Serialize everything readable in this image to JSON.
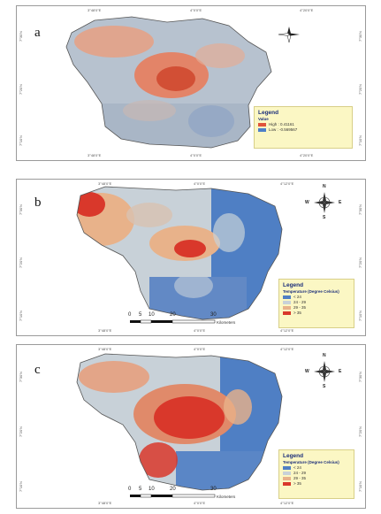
{
  "panels": [
    {
      "letter": "a",
      "legend": {
        "title": "Legend",
        "subtitle": "Value",
        "items": [
          {
            "label": "High : 0.41161",
            "color": "#e0533a"
          },
          {
            "label": "Low : -0.569567",
            "color": "#4d7fc8"
          }
        ]
      },
      "coords_top": [
        "3°48'0\"E",
        "4°0'0\"E",
        "4°20'0\"E"
      ],
      "coords_bottom": [
        "3°48'0\"E",
        "4°0'0\"E",
        "4°20'0\"E"
      ],
      "coords_left": [
        "7°30'N",
        "7°20'N",
        "7°10'N"
      ],
      "coords_right": [
        "7°30'N",
        "7°20'N",
        "7°10'N"
      ]
    },
    {
      "letter": "b",
      "legend": {
        "title": "Legend",
        "subtitle": "Temperature (Degree Celsius)",
        "items": [
          {
            "label": "< 24",
            "color": "#4f7fc4"
          },
          {
            "label": "24 - 29",
            "color": "#c8d1d8"
          },
          {
            "label": "29 - 35",
            "color": "#e8b28a"
          },
          {
            "label": "> 35",
            "color": "#d9382b"
          }
        ]
      },
      "scale": {
        "ticks": [
          "0",
          "5",
          "10",
          "20",
          "30"
        ],
        "unit": "Kilometers"
      },
      "compass": {
        "n": "N",
        "s": "S",
        "e": "E",
        "w": "W"
      },
      "coords_top": [
        "3°48'0\"E",
        "4°0'0\"E",
        "4°12'0\"E"
      ],
      "coords_bottom": [
        "3°48'0\"E",
        "4°0'0\"E",
        "4°12'0\"E"
      ],
      "coords_left": [
        "7°30'N",
        "7°20'N",
        "7°10'N"
      ],
      "coords_right": [
        "7°30'N",
        "7°20'N",
        "7°10'N"
      ]
    },
    {
      "letter": "c",
      "legend": {
        "title": "Legend",
        "subtitle": "Temperature (Degree Celsius)",
        "items": [
          {
            "label": "< 24",
            "color": "#4f7fc4"
          },
          {
            "label": "24 - 29",
            "color": "#c8d1d8"
          },
          {
            "label": "29 - 35",
            "color": "#e8b28a"
          },
          {
            "label": "> 35",
            "color": "#d9382b"
          }
        ]
      },
      "scale": {
        "ticks": [
          "0",
          "5",
          "10",
          "20",
          "30"
        ],
        "unit": "Kilometers"
      },
      "compass": {
        "n": "N",
        "s": "S",
        "e": "E",
        "w": "W"
      },
      "coords_top": [
        "3°48'0\"E",
        "4°0'0\"E",
        "4°12'0\"E"
      ],
      "coords_bottom": [
        "3°48'0\"E",
        "4°0'0\"E",
        "4°12'0\"E"
      ],
      "coords_left": [
        "7°30'N",
        "7°20'N",
        "7°10'N"
      ],
      "coords_right": [
        "7°30'N",
        "7°20'N",
        "7°10'N"
      ]
    }
  ],
  "colors": {
    "blue": "#4f7fc4",
    "grey": "#c8d1d8",
    "orange": "#e8b28a",
    "red": "#d9382b",
    "outline": "#6e6e6e"
  }
}
